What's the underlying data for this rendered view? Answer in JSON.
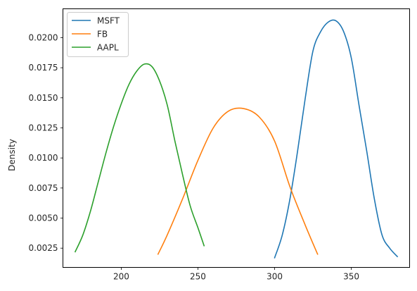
{
  "chart_data": {
    "type": "line",
    "title": "",
    "xlabel": "",
    "ylabel": "Density",
    "xlim": [
      162,
      388
    ],
    "ylim": [
      0.0009,
      0.0224
    ],
    "xticks": [
      200,
      250,
      300,
      350
    ],
    "yticks": [
      0.0025,
      0.005,
      0.0075,
      0.01,
      0.0125,
      0.015,
      0.0175,
      0.02
    ],
    "ytick_labels": [
      "0.0025",
      "0.0050",
      "0.0075",
      "0.0100",
      "0.0125",
      "0.0150",
      "0.0175",
      "0.0200"
    ],
    "grid": false,
    "legend_position": "top-left",
    "series": [
      {
        "name": "MSFT",
        "color": "#1f77b4",
        "x": [
          300,
          305,
          310,
          315,
          320,
          325,
          330,
          335,
          340,
          345,
          350,
          355,
          360,
          365,
          370,
          375,
          380
        ],
        "y": [
          0.0017,
          0.0036,
          0.0066,
          0.0106,
          0.015,
          0.0189,
          0.0205,
          0.0213,
          0.0214,
          0.0205,
          0.0183,
          0.0144,
          0.0106,
          0.0066,
          0.0036,
          0.0025,
          0.0018
        ]
      },
      {
        "name": "FB",
        "color": "#ff7f0e",
        "x": [
          224,
          230,
          240,
          250,
          260,
          270,
          280,
          290,
          300,
          310,
          320,
          328
        ],
        "y": [
          0.002,
          0.0036,
          0.0066,
          0.0098,
          0.0125,
          0.0139,
          0.0141,
          0.0134,
          0.0114,
          0.0076,
          0.0044,
          0.002
        ]
      },
      {
        "name": "AAPL",
        "color": "#2ca02c",
        "x": [
          170,
          175,
          180,
          185,
          190,
          195,
          200,
          205,
          210,
          215,
          220,
          225,
          230,
          235,
          240,
          245,
          250,
          254
        ],
        "y": [
          0.0022,
          0.0036,
          0.0056,
          0.008,
          0.0104,
          0.0126,
          0.0145,
          0.0161,
          0.0172,
          0.0178,
          0.0176,
          0.0164,
          0.0144,
          0.0114,
          0.0086,
          0.006,
          0.0042,
          0.0027
        ]
      }
    ]
  }
}
